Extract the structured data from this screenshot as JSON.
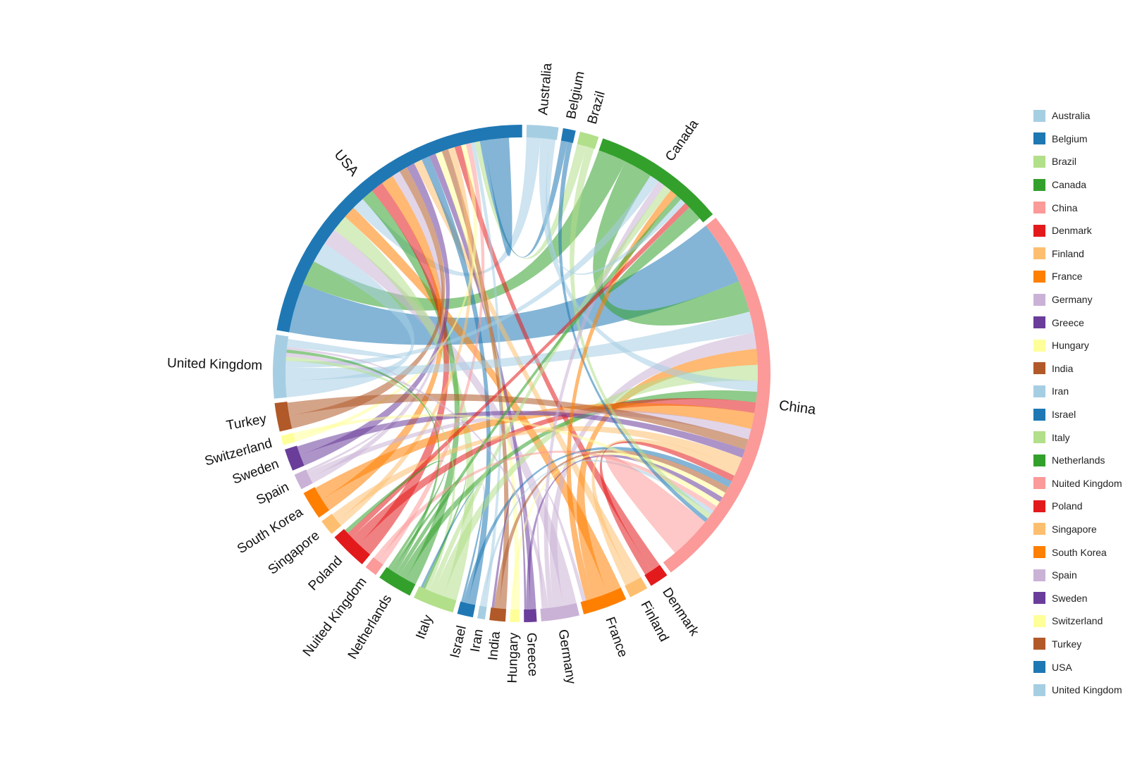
{
  "chart_data": {
    "type": "chord",
    "title": "",
    "groups": [
      {
        "name": "Australia",
        "color": "#a6cee3",
        "size": 5
      },
      {
        "name": "Belgium",
        "color": "#1f78b4",
        "size": 2
      },
      {
        "name": "Brazil",
        "color": "#b2df8a",
        "size": 3
      },
      {
        "name": "Canada",
        "color": "#33a02c",
        "size": 21
      },
      {
        "name": "China",
        "color": "#fb9a99",
        "size": 62
      },
      {
        "name": "Denmark",
        "color": "#e31a1c",
        "size": 3
      },
      {
        "name": "Finland",
        "color": "#fdbf6f",
        "size": 3
      },
      {
        "name": "France",
        "color": "#ff7f00",
        "size": 7
      },
      {
        "name": "Germany",
        "color": "#cab2d6",
        "size": 6
      },
      {
        "name": "Greece",
        "color": "#6a3d9a",
        "size": 2
      },
      {
        "name": "Hungary",
        "color": "#ffff99",
        "size": 1.5
      },
      {
        "name": "India",
        "color": "#b15928",
        "size": 2.5
      },
      {
        "name": "Iran",
        "color": "#a6cee3",
        "size": 1.2
      },
      {
        "name": "Israel",
        "color": "#1f78b4",
        "size": 2.5
      },
      {
        "name": "Italy",
        "color": "#b2df8a",
        "size": 6.5
      },
      {
        "name": "Netherlands",
        "color": "#33a02c",
        "size": 5.5
      },
      {
        "name": "Nuited Kingdom",
        "color": "#fb9a99",
        "size": 2
      },
      {
        "name": "Poland",
        "color": "#e31a1c",
        "size": 6
      },
      {
        "name": "Singapore",
        "color": "#fdbf6f",
        "size": 2.5
      },
      {
        "name": "South Korea",
        "color": "#ff7f00",
        "size": 4.5
      },
      {
        "name": "Spain",
        "color": "#cab2d6",
        "size": 2.5
      },
      {
        "name": "Sweden",
        "color": "#6a3d9a",
        "size": 3.5
      },
      {
        "name": "Switzerland",
        "color": "#ffff99",
        "size": 1.5
      },
      {
        "name": "Turkey",
        "color": "#b15928",
        "size": 4.5
      },
      {
        "name": "United Kingdom",
        "color": "#a6cee3",
        "size": 10
      },
      {
        "name": "USA",
        "color": "#1f78b4",
        "size": 54
      }
    ],
    "arc_order": [
      "Australia",
      "Belgium",
      "Brazil",
      "Canada",
      "China",
      "Denmark",
      "Finland",
      "France",
      "Germany",
      "Greece",
      "Hungary",
      "India",
      "Iran",
      "Israel",
      "Italy",
      "Netherlands",
      "Nuited Kingdom",
      "Poland",
      "Singapore",
      "South Korea",
      "Spain",
      "Sweden",
      "Switzerland",
      "Turkey",
      "United Kingdom",
      "USA"
    ],
    "links": [
      [
        "USA",
        "China",
        6
      ],
      [
        "USA",
        "Canada",
        3
      ],
      [
        "USA",
        "United Kingdom",
        2.5
      ],
      [
        "USA",
        "Germany",
        2
      ],
      [
        "USA",
        "Italy",
        2
      ],
      [
        "USA",
        "France",
        1.5
      ],
      [
        "USA",
        "Australia",
        1.5
      ],
      [
        "USA",
        "Netherlands",
        1.5
      ],
      [
        "USA",
        "Poland",
        1.5
      ],
      [
        "USA",
        "South Korea",
        1.5
      ],
      [
        "USA",
        "Spain",
        1
      ],
      [
        "USA",
        "Turkey",
        1
      ],
      [
        "USA",
        "Sweden",
        1
      ],
      [
        "USA",
        "Finland",
        1
      ],
      [
        "USA",
        "Israel",
        1
      ],
      [
        "USA",
        "Greece",
        0.8
      ],
      [
        "USA",
        "Hungary",
        0.8
      ],
      [
        "USA",
        "India",
        0.8
      ],
      [
        "USA",
        "Singapore",
        0.8
      ],
      [
        "USA",
        "Denmark",
        0.8
      ],
      [
        "USA",
        "Switzerland",
        0.6
      ],
      [
        "USA",
        "Nuited Kingdom",
        0.6
      ],
      [
        "USA",
        "Iran",
        0.5
      ],
      [
        "USA",
        "Brazil",
        0.6
      ],
      [
        "USA",
        "Belgium",
        0.5
      ],
      [
        "USA",
        "USA",
        1.5
      ],
      [
        "China",
        "Canada",
        3
      ],
      [
        "China",
        "United Kingdom",
        2
      ],
      [
        "China",
        "Germany",
        1.5
      ],
      [
        "China",
        "France",
        1.5
      ],
      [
        "China",
        "Italy",
        1.5
      ],
      [
        "China",
        "Australia",
        1
      ],
      [
        "China",
        "Netherlands",
        1
      ],
      [
        "China",
        "Poland",
        1
      ],
      [
        "China",
        "South Korea",
        1.5
      ],
      [
        "China",
        "Spain",
        1
      ],
      [
        "China",
        "Turkey",
        1
      ],
      [
        "China",
        "Sweden",
        0.8
      ],
      [
        "China",
        "Singapore",
        1
      ],
      [
        "China",
        "Finland",
        0.8
      ],
      [
        "China",
        "Denmark",
        0.6
      ],
      [
        "China",
        "Israel",
        0.6
      ],
      [
        "China",
        "India",
        0.6
      ],
      [
        "China",
        "Hungary",
        0.5
      ],
      [
        "China",
        "Greece",
        0.5
      ],
      [
        "China",
        "Switzerland",
        0.5
      ],
      [
        "China",
        "Nuited Kingdom",
        0.5
      ],
      [
        "China",
        "Iran",
        0.4
      ],
      [
        "China",
        "Brazil",
        0.5
      ],
      [
        "China",
        "Belgium",
        0.4
      ],
      [
        "China",
        "China",
        2
      ],
      [
        "Canada",
        "United Kingdom",
        1
      ],
      [
        "Canada",
        "Germany",
        0.8
      ],
      [
        "Canada",
        "Italy",
        0.8
      ],
      [
        "Canada",
        "France",
        0.8
      ],
      [
        "Canada",
        "Netherlands",
        0.6
      ],
      [
        "Canada",
        "Australia",
        0.6
      ],
      [
        "Canada",
        "Poland",
        0.6
      ],
      [
        "Canada",
        "Canada",
        0.8
      ],
      [
        "United Kingdom",
        "Italy",
        0.6
      ],
      [
        "United Kingdom",
        "Germany",
        0.6
      ],
      [
        "United Kingdom",
        "Netherlands",
        0.5
      ],
      [
        "United Kingdom",
        "Spain",
        0.4
      ],
      [
        "United Kingdom",
        "United Kingdom",
        0.6
      ],
      [
        "Italy",
        "Netherlands",
        0.4
      ],
      [
        "Germany",
        "France",
        0.4
      ],
      [
        "Poland",
        "Netherlands",
        0.4
      ],
      [
        "Italy",
        "Israel",
        0.3
      ],
      [
        "India",
        "Greece",
        0.3
      ]
    ]
  },
  "legend": {
    "items": [
      {
        "label": "Australia",
        "color": "#a6cee3"
      },
      {
        "label": "Belgium",
        "color": "#1f78b4"
      },
      {
        "label": "Brazil",
        "color": "#b2df8a"
      },
      {
        "label": "Canada",
        "color": "#33a02c"
      },
      {
        "label": "China",
        "color": "#fb9a99"
      },
      {
        "label": "Denmark",
        "color": "#e31a1c"
      },
      {
        "label": "Finland",
        "color": "#fdbf6f"
      },
      {
        "label": "France",
        "color": "#ff7f00"
      },
      {
        "label": "Germany",
        "color": "#cab2d6"
      },
      {
        "label": "Greece",
        "color": "#6a3d9a"
      },
      {
        "label": "Hungary",
        "color": "#ffff99"
      },
      {
        "label": "India",
        "color": "#b15928"
      },
      {
        "label": "Iran",
        "color": "#a6cee3"
      },
      {
        "label": "Israel",
        "color": "#1f78b4"
      },
      {
        "label": "Italy",
        "color": "#b2df8a"
      },
      {
        "label": "Netherlands",
        "color": "#33a02c"
      },
      {
        "label": "Nuited Kingdom",
        "color": "#fb9a99"
      },
      {
        "label": "Poland",
        "color": "#e31a1c"
      },
      {
        "label": "Singapore",
        "color": "#fdbf6f"
      },
      {
        "label": "South Korea",
        "color": "#ff7f00"
      },
      {
        "label": "Spain",
        "color": "#cab2d6"
      },
      {
        "label": "Sweden",
        "color": "#6a3d9a"
      },
      {
        "label": "Switzerland",
        "color": "#ffff99"
      },
      {
        "label": "Turkey",
        "color": "#b15928"
      },
      {
        "label": "USA",
        "color": "#1f78b4"
      },
      {
        "label": "United Kingdom",
        "color": "#a6cee3"
      }
    ]
  }
}
